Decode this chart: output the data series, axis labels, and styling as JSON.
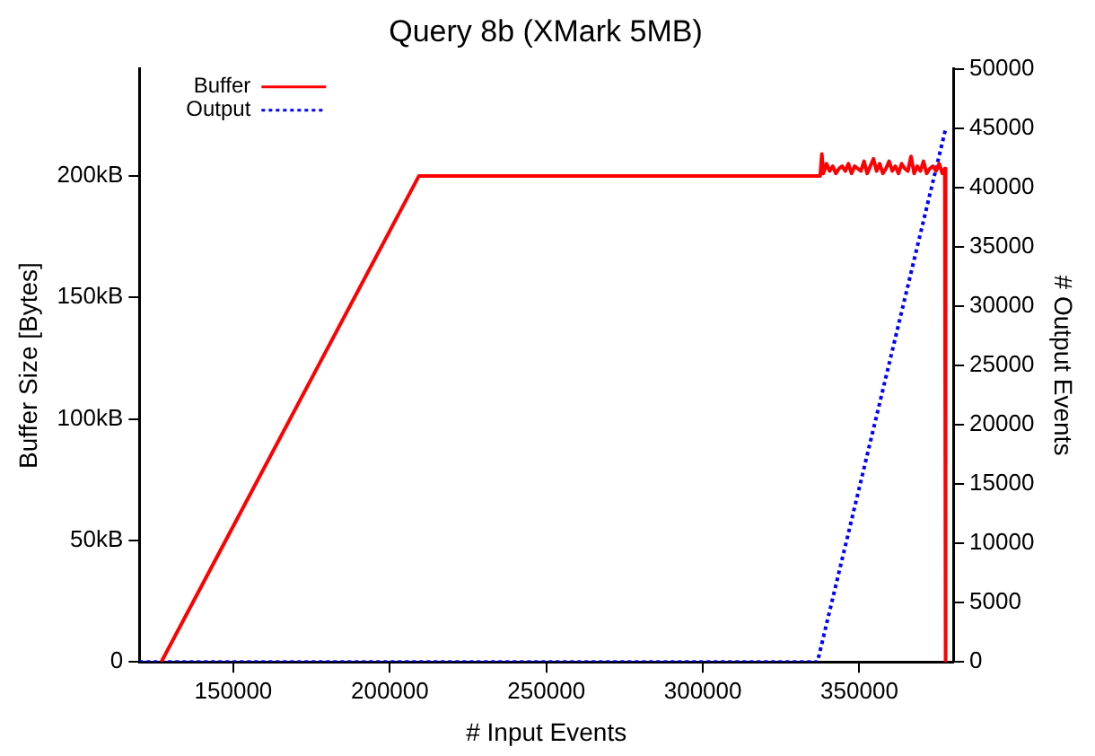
{
  "chart_data": {
    "type": "line",
    "title": "Query 8b (XMark 5MB)",
    "xlabel": "# Input Events",
    "ylabel": "Buffer Size [Bytes]",
    "y2label": "# Output Events",
    "xlim": [
      120000,
      380000
    ],
    "xticks": [
      150000,
      200000,
      250000,
      300000,
      350000
    ],
    "ylim": [
      0,
      244
    ],
    "yticks": [
      0,
      {
        "value": 50,
        "label": "50kB"
      },
      {
        "value": 100,
        "label": "100kB"
      },
      {
        "value": 150,
        "label": "150kB"
      },
      {
        "value": 200,
        "label": "200kB"
      }
    ],
    "y2lim": [
      0,
      50000
    ],
    "y2ticks": [
      0,
      5000,
      10000,
      15000,
      20000,
      25000,
      30000,
      35000,
      40000,
      45000,
      50000
    ],
    "legend": "top left",
    "marker": "none",
    "series": [
      {
        "name": "Buffer",
        "color": "#ff0000",
        "line_style": "solid",
        "x": [
          127000,
          209300,
          337500,
          338000,
          338500,
          339500,
          340500,
          341500,
          342500,
          343500,
          344500,
          345500,
          346500,
          347500,
          348500,
          349500,
          350500,
          351500,
          352500,
          353500,
          354500,
          355500,
          356500,
          357500,
          358500,
          359500,
          360500,
          361500,
          362500,
          363500,
          364500,
          365500,
          366500,
          367500,
          368500,
          369500,
          370500,
          371500,
          372500,
          373500,
          374500,
          375500,
          376500,
          377300,
          377500,
          377600
        ],
        "values": [
          0,
          200,
          200,
          209,
          201,
          205,
          202,
          204,
          201,
          203,
          204,
          202,
          205,
          201,
          204,
          203,
          202,
          206,
          201,
          204,
          207,
          202,
          205,
          201,
          203,
          206,
          202,
          204,
          201,
          205,
          203,
          202,
          208,
          201,
          204,
          202,
          206,
          201,
          203,
          204,
          202,
          205,
          201,
          203,
          200,
          0
        ]
      },
      {
        "name": "Output",
        "color": "#0000ff",
        "line_style": "dotted",
        "axis": "y2",
        "x": [
          120000,
          336600,
          377600
        ],
        "values": [
          0,
          0,
          45000
        ]
      }
    ]
  }
}
